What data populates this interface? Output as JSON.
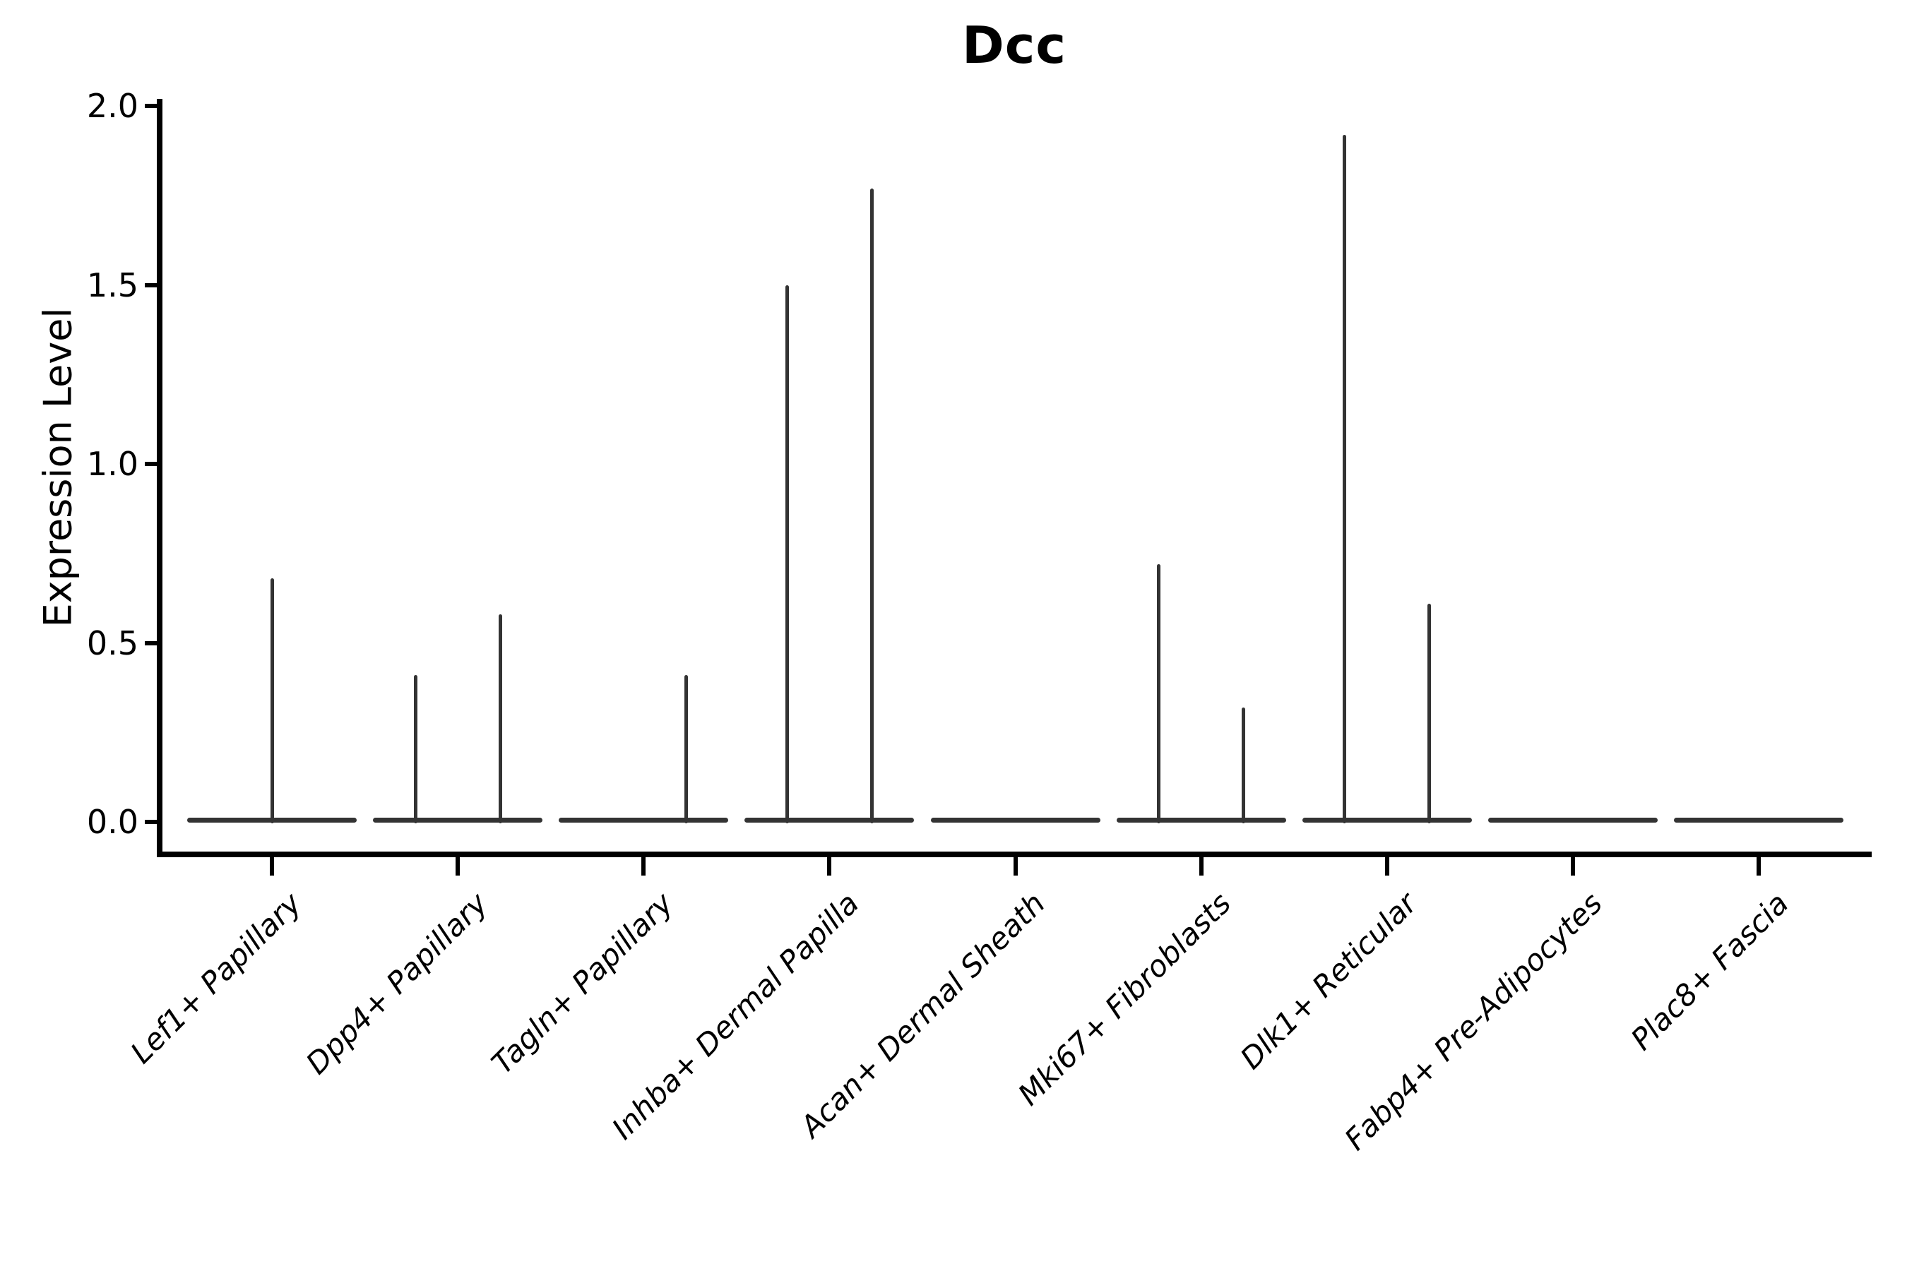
{
  "title": "Dcc",
  "ylabel": "Expression Level",
  "colors": {
    "violin": "#333333",
    "axis": "#000000",
    "text": "#000000"
  },
  "chart_data": {
    "type": "violin",
    "title": "Dcc",
    "xlabel": "",
    "ylabel": "Expression Level",
    "ylim": [
      0.0,
      2.0
    ],
    "yticks": [
      "0.0",
      "0.5",
      "1.0",
      "1.5",
      "2.0"
    ],
    "grid": false,
    "legend": "none",
    "description": "Violin plot of Dcc expression per fibroblast subtype; each violin collapses to a flat bar at 0 with thin density spikes reaching the maximum expression values. Spike offset is a fraction of violin width from the category center.",
    "categories": [
      "Lef1+ Papillary",
      "Dpp4+ Papillary",
      "Tagln+ Papillary",
      "Inhba+ Dermal Papilla",
      "Acan+ Dermal Sheath",
      "Mki67+ Fibroblasts",
      "Dlk1+ Reticular",
      "Fabp4+ Pre-Adipocytes",
      "Plac8+ Fascia"
    ],
    "violins": [
      {
        "label": "Lef1+ Papillary",
        "baseline": 0.0,
        "spikes": [
          {
            "offset": 0.0,
            "max": 0.68
          }
        ]
      },
      {
        "label": "Dpp4+ Papillary",
        "baseline": 0.0,
        "spikes": [
          {
            "offset": -0.25,
            "max": 0.41
          },
          {
            "offset": 0.25,
            "max": 0.58
          }
        ]
      },
      {
        "label": "Tagln+ Papillary",
        "baseline": 0.0,
        "spikes": [
          {
            "offset": 0.25,
            "max": 0.41
          }
        ]
      },
      {
        "label": "Inhba+ Dermal Papilla",
        "baseline": 0.0,
        "spikes": [
          {
            "offset": -0.25,
            "max": 1.5
          },
          {
            "offset": 0.25,
            "max": 1.77
          }
        ]
      },
      {
        "label": "Acan+ Dermal Sheath",
        "baseline": 0.0,
        "spikes": []
      },
      {
        "label": "Mki67+ Fibroblasts",
        "baseline": 0.0,
        "spikes": [
          {
            "offset": -0.25,
            "max": 0.72
          },
          {
            "offset": 0.25,
            "max": 0.32
          }
        ]
      },
      {
        "label": "Dlk1+ Reticular",
        "baseline": 0.0,
        "spikes": [
          {
            "offset": -0.25,
            "max": 1.92
          },
          {
            "offset": 0.25,
            "max": 0.61
          }
        ]
      },
      {
        "label": "Fabp4+ Pre-Adipocytes",
        "baseline": 0.0,
        "spikes": []
      },
      {
        "label": "Plac8+ Fascia",
        "baseline": 0.0,
        "spikes": []
      }
    ]
  }
}
